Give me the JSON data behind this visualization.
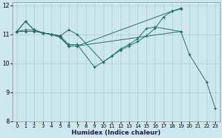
{
  "xlabel": "Humidex (Indice chaleur)",
  "bg_color": "#cce8ee",
  "line_color": "#1a6b5a",
  "grid_color": "#b0cccc",
  "xlim": [
    -0.5,
    23.5
  ],
  "ylim": [
    8,
    12.1
  ],
  "yticks": [
    8,
    9,
    10,
    11,
    12
  ],
  "xticks": [
    0,
    1,
    2,
    3,
    4,
    5,
    6,
    7,
    8,
    9,
    10,
    11,
    12,
    13,
    14,
    15,
    16,
    17,
    18,
    19,
    20,
    21,
    22,
    23
  ],
  "series": [
    {
      "x": [
        0,
        1,
        2,
        3,
        4,
        5,
        6,
        7,
        10,
        11,
        12,
        13,
        14,
        15,
        16,
        17,
        18,
        19
      ],
      "y": [
        11.1,
        11.45,
        11.15,
        11.05,
        11.0,
        10.95,
        11.15,
        11.0,
        10.05,
        10.25,
        10.45,
        10.6,
        10.75,
        10.95,
        11.2,
        11.6,
        11.8,
        11.9
      ]
    },
    {
      "x": [
        0,
        1,
        2,
        3,
        4,
        5,
        6,
        7,
        9,
        10,
        11,
        12,
        13,
        14,
        15,
        16,
        19
      ],
      "y": [
        11.1,
        11.15,
        11.15,
        11.05,
        11.0,
        10.95,
        10.65,
        10.65,
        9.87,
        10.05,
        10.25,
        10.5,
        10.65,
        10.85,
        11.2,
        11.25,
        11.1
      ]
    },
    {
      "x": [
        0,
        1,
        2,
        3,
        4,
        5,
        6,
        7,
        19,
        20,
        22,
        23
      ],
      "y": [
        11.1,
        11.1,
        11.1,
        11.05,
        11.0,
        10.9,
        10.6,
        10.6,
        11.1,
        10.3,
        9.35,
        8.45
      ]
    },
    {
      "x": [
        0,
        1,
        2,
        3,
        4,
        5,
        6,
        7,
        18,
        19
      ],
      "y": [
        11.1,
        11.45,
        11.15,
        11.05,
        11.0,
        10.9,
        10.6,
        10.6,
        11.8,
        11.87
      ]
    }
  ]
}
